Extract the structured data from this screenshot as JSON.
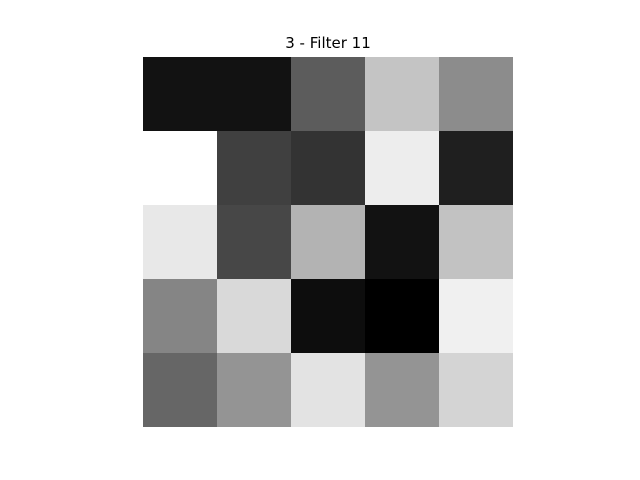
{
  "chart_data": {
    "type": "heatmap",
    "title": "3 - Filter 11",
    "xlabel": "",
    "ylabel": "",
    "colormap": "gray",
    "axes_visible": false,
    "grid": false,
    "rows": 5,
    "cols": 5,
    "values": [
      [
        0.07,
        0.07,
        0.36,
        0.77,
        0.55
      ],
      [
        1.0,
        0.25,
        0.2,
        0.93,
        0.12
      ],
      [
        0.91,
        0.28,
        0.7,
        0.07,
        0.76
      ],
      [
        0.52,
        0.85,
        0.05,
        0.0,
        0.94
      ],
      [
        0.4,
        0.58,
        0.89,
        0.58,
        0.83
      ]
    ],
    "vmin": 0,
    "vmax": 1
  },
  "colors": {
    "background": "#ffffff",
    "title": "#000000"
  }
}
